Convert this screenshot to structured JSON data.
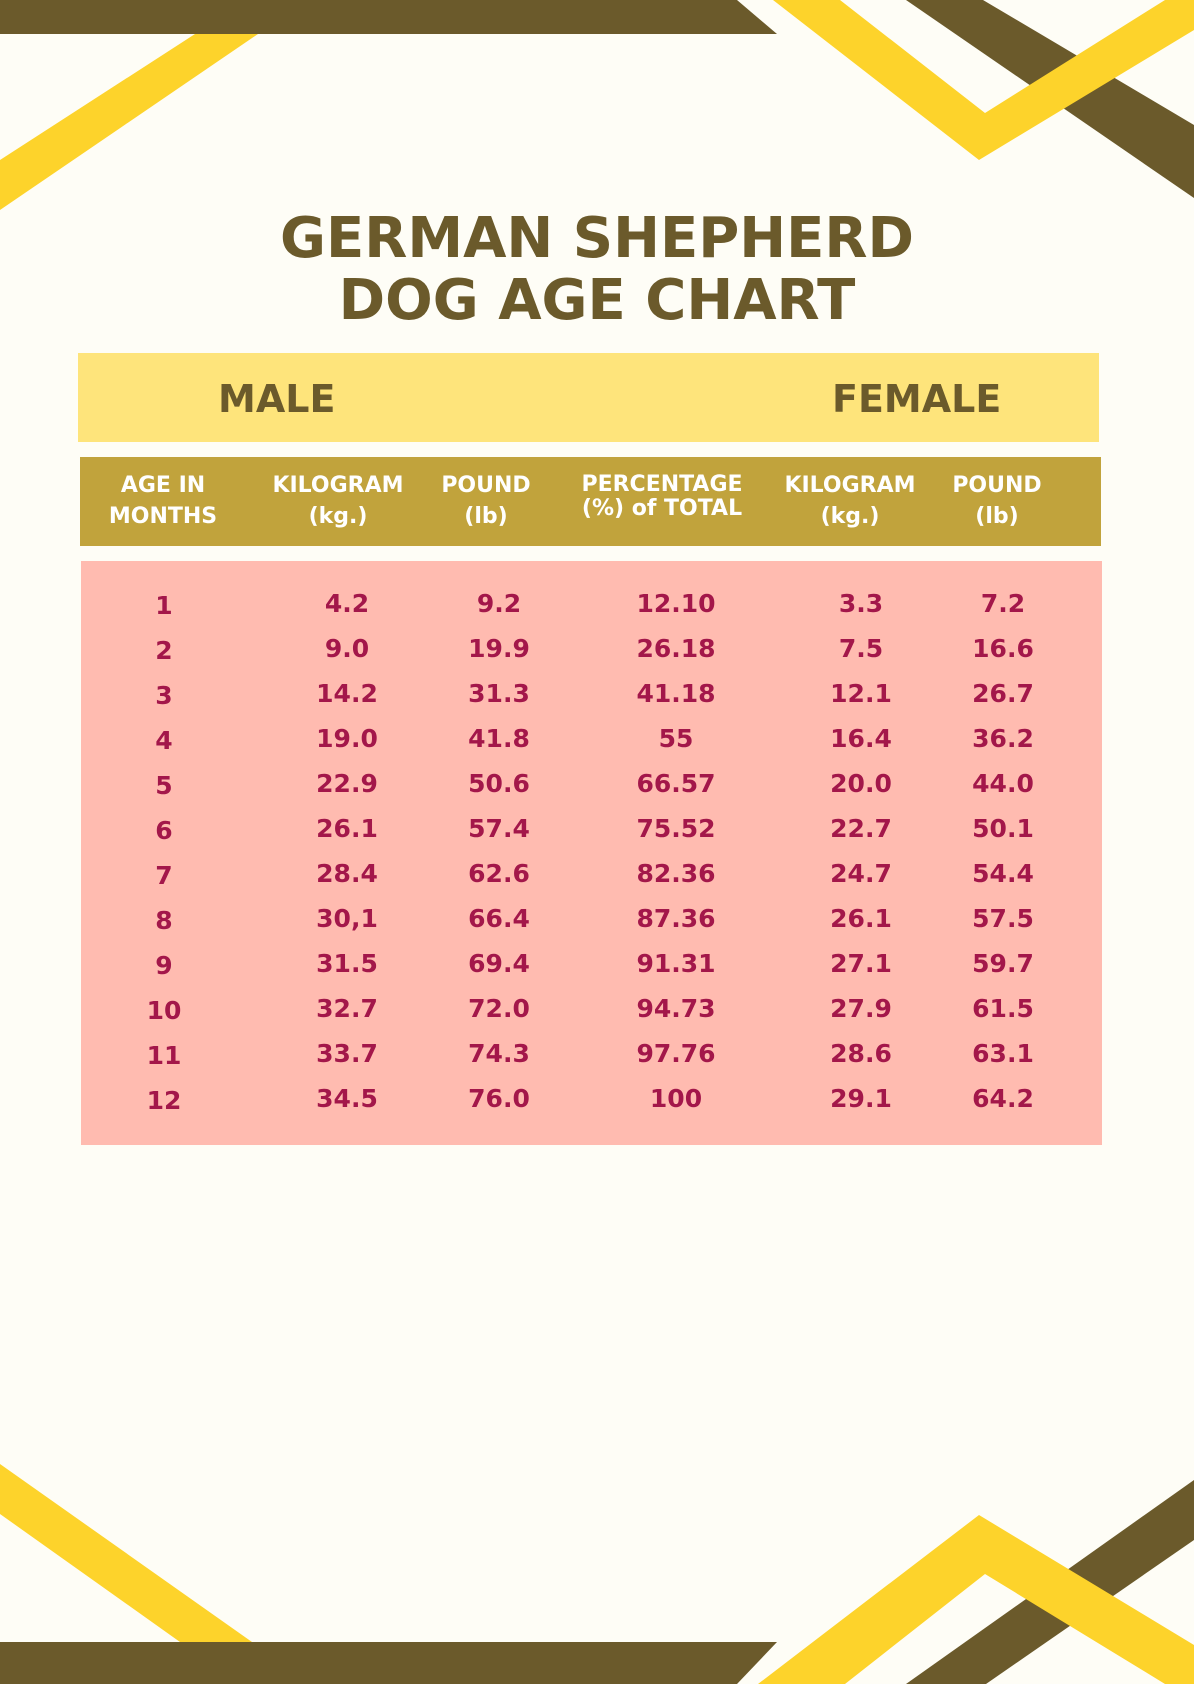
{
  "title": {
    "line1": "GERMAN SHEPHERD",
    "line2": "DOG AGE CHART"
  },
  "gender_headers": {
    "male": "MALE",
    "female": "FEMALE"
  },
  "columns": [
    {
      "line1": "AGE IN",
      "line2": "MONTHS"
    },
    {
      "line1": "KILOGRAM",
      "line2": "(kg.)"
    },
    {
      "line1": "POUND",
      "line2": "(lb)"
    },
    {
      "line1": "PERCENTAGE",
      "line2": "(%) of TOTAL"
    },
    {
      "line1": "KILOGRAM",
      "line2": "(kg.)"
    },
    {
      "line1": "POUND",
      "line2": "(lb)"
    }
  ],
  "rows": [
    [
      "1",
      "4.2",
      "9.2",
      "12.10",
      "3.3",
      "7.2"
    ],
    [
      "2",
      "9.0",
      "19.9",
      "26.18",
      "7.5",
      "16.6"
    ],
    [
      "3",
      "14.2",
      "31.3",
      "41.18",
      "12.1",
      "26.7"
    ],
    [
      "4",
      "19.0",
      "41.8",
      "55",
      "16.4",
      "36.2"
    ],
    [
      "5",
      "22.9",
      "50.6",
      "66.57",
      "20.0",
      "44.0"
    ],
    [
      "6",
      "26.1",
      "57.4",
      "75.52",
      "22.7",
      "50.1"
    ],
    [
      "7",
      "28.4",
      "62.6",
      "82.36",
      "24.7",
      "54.4"
    ],
    [
      "8",
      "30,1",
      "66.4",
      "87.36",
      "26.1",
      "57.5"
    ],
    [
      "9",
      "31.5",
      "69.4",
      "91.31",
      "27.1",
      "59.7"
    ],
    [
      "10",
      "32.7",
      "72.0",
      "94.73",
      "27.9",
      "61.5"
    ],
    [
      "11",
      "33.7",
      "74.3",
      "97.76",
      "28.6",
      "63.1"
    ],
    [
      "12",
      "34.5",
      "76.0",
      "100",
      "29.1",
      "64.2"
    ]
  ],
  "colors": {
    "background": "#fefdf6",
    "brown": "#6b5a2b",
    "yellow": "#fdd32b",
    "light_yellow": "#fee47b",
    "header_gold": "#c1a33c",
    "table_pink": "#ffbbb0",
    "value_text": "#a3174a"
  }
}
